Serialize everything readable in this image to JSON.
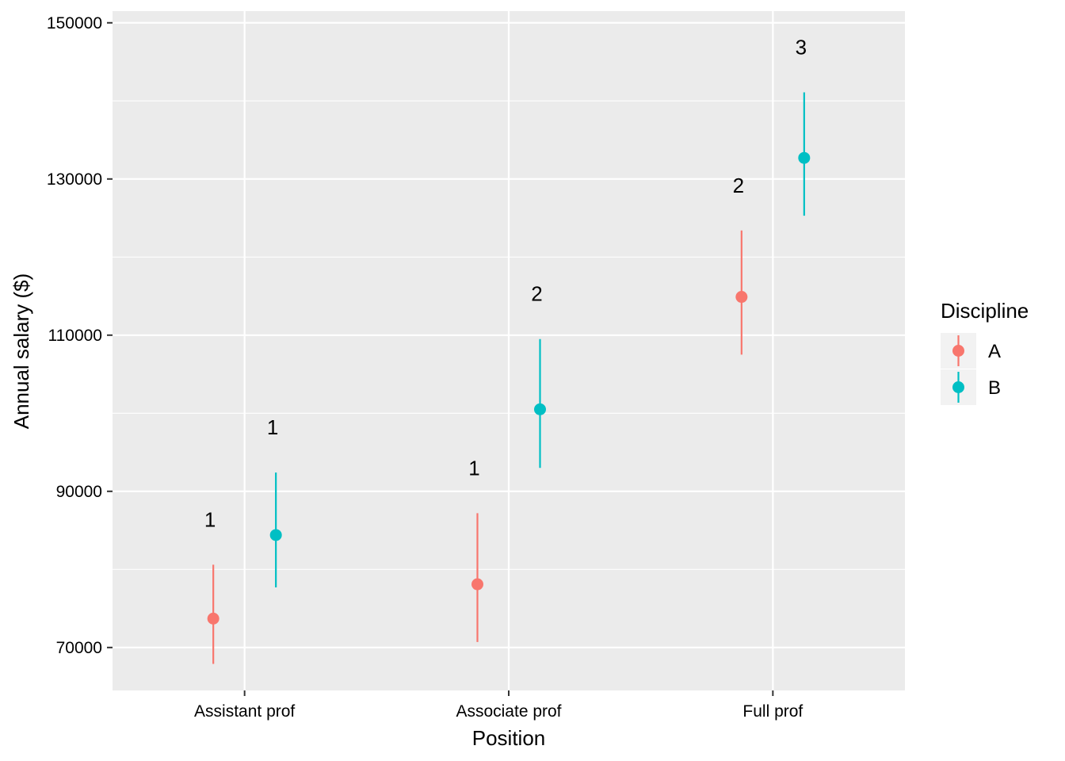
{
  "chart_data": {
    "type": "scatter",
    "subtype": "point-range",
    "title": "",
    "xlabel": "Position",
    "ylabel": "Annual salary ($)",
    "categories": [
      "Assistant prof",
      "Associate prof",
      "Full prof"
    ],
    "ylim": [
      64500,
      151500
    ],
    "yticks": [
      70000,
      90000,
      110000,
      130000,
      150000
    ],
    "grid": true,
    "legend": {
      "title": "Discipline",
      "placement": "right"
    },
    "series": [
      {
        "name": "A",
        "color": "#F8766D",
        "values": [
          73700,
          78100,
          114900
        ],
        "lower": [
          67900,
          70700,
          107500
        ],
        "upper": [
          80600,
          87200,
          123400
        ],
        "group_labels": [
          "1",
          "1",
          "2"
        ]
      },
      {
        "name": "B",
        "color": "#00BFC4",
        "values": [
          84400,
          100500,
          132700
        ],
        "lower": [
          77700,
          93000,
          125300
        ],
        "upper": [
          92400,
          109500,
          141100
        ],
        "group_labels": [
          "1",
          "2",
          "3"
        ]
      }
    ]
  }
}
